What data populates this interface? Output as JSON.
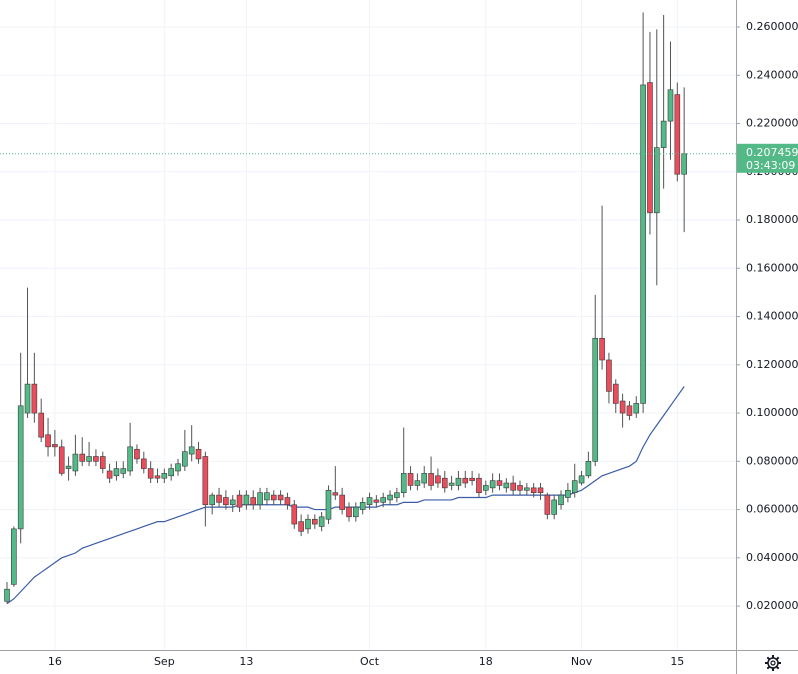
{
  "chart_data": {
    "type": "candlestick",
    "categories": [
      null,
      null,
      null,
      null,
      null,
      null,
      null,
      "16",
      null,
      null,
      null,
      null,
      null,
      null,
      null,
      null,
      null,
      null,
      null,
      null,
      null,
      null,
      null,
      "Sep",
      null,
      null,
      null,
      null,
      null,
      null,
      null,
      null,
      null,
      null,
      null,
      "13",
      null,
      null,
      null,
      null,
      null,
      null,
      null,
      null,
      null,
      null,
      null,
      null,
      null,
      null,
      null,
      null,
      null,
      "Oct",
      null,
      null,
      null,
      null,
      null,
      null,
      null,
      null,
      null,
      null,
      null,
      null,
      null,
      null,
      null,
      null,
      "18",
      null,
      null,
      null,
      null,
      null,
      null,
      null,
      null,
      null,
      null,
      null,
      null,
      null,
      "Nov",
      null,
      null,
      null,
      null,
      null,
      null,
      null,
      null,
      null,
      null,
      null,
      null,
      null,
      "15",
      null
    ],
    "open": [
      0.022,
      0.029,
      0.052,
      0.1,
      0.112,
      0.1,
      0.091,
      0.087,
      0.086,
      0.077,
      0.076,
      0.083,
      0.08,
      0.082,
      0.082,
      0.076,
      0.074,
      0.075,
      0.076,
      0.085,
      0.081,
      0.077,
      0.074,
      0.073,
      0.074,
      0.076,
      0.078,
      0.083,
      0.085,
      0.082,
      0.062,
      0.066,
      0.065,
      0.062,
      0.066,
      0.062,
      0.065,
      0.062,
      0.064,
      0.066,
      0.066,
      0.065,
      0.062,
      0.055,
      0.052,
      0.056,
      0.053,
      0.056,
      0.067,
      0.066,
      0.061,
      0.057,
      0.06,
      0.062,
      0.064,
      0.063,
      0.064,
      0.065,
      0.067,
      0.075,
      0.07,
      0.071,
      0.075,
      0.074,
      0.073,
      0.07,
      0.07,
      0.073,
      0.073,
      0.073,
      0.068,
      0.069,
      0.072,
      0.069,
      0.071,
      0.07,
      0.068,
      0.069,
      0.069,
      0.066,
      0.058,
      0.062,
      0.065,
      0.067,
      0.071,
      0.074,
      0.08,
      0.131,
      0.122,
      0.112,
      0.105,
      0.103,
      0.1,
      0.104,
      0.237,
      0.183,
      0.21,
      0.221,
      0.232,
      0.199
    ],
    "high": [
      0.03,
      0.053,
      0.125,
      0.152,
      0.125,
      0.106,
      0.098,
      0.093,
      0.089,
      0.082,
      0.091,
      0.09,
      0.088,
      0.085,
      0.084,
      0.079,
      0.08,
      0.08,
      0.096,
      0.087,
      0.084,
      0.08,
      0.077,
      0.077,
      0.079,
      0.081,
      0.093,
      0.095,
      0.088,
      0.084,
      0.067,
      0.069,
      0.068,
      0.066,
      0.068,
      0.068,
      0.068,
      0.069,
      0.069,
      0.068,
      0.068,
      0.067,
      0.064,
      0.058,
      0.058,
      0.058,
      0.059,
      0.07,
      0.078,
      0.069,
      0.063,
      0.063,
      0.065,
      0.067,
      0.066,
      0.067,
      0.068,
      0.069,
      0.094,
      0.078,
      0.075,
      0.078,
      0.082,
      0.077,
      0.076,
      0.074,
      0.076,
      0.076,
      0.076,
      0.075,
      0.072,
      0.075,
      0.075,
      0.073,
      0.074,
      0.072,
      0.071,
      0.071,
      0.071,
      0.067,
      0.066,
      0.068,
      0.071,
      0.079,
      0.076,
      0.084,
      0.149,
      0.186,
      0.125,
      0.114,
      0.108,
      0.105,
      0.107,
      0.266,
      0.258,
      0.259,
      0.265,
      0.254,
      0.237,
      0.235
    ],
    "low": [
      0.021,
      0.028,
      0.046,
      0.098,
      0.096,
      0.088,
      0.082,
      0.082,
      0.074,
      0.072,
      0.074,
      0.078,
      0.078,
      0.078,
      0.075,
      0.071,
      0.072,
      0.073,
      0.074,
      0.079,
      0.075,
      0.071,
      0.071,
      0.071,
      0.072,
      0.074,
      0.076,
      0.08,
      0.079,
      0.053,
      0.058,
      0.061,
      0.06,
      0.059,
      0.059,
      0.06,
      0.06,
      0.06,
      0.062,
      0.062,
      0.062,
      0.06,
      0.052,
      0.049,
      0.05,
      0.052,
      0.051,
      0.054,
      0.064,
      0.058,
      0.055,
      0.055,
      0.058,
      0.06,
      0.061,
      0.061,
      0.062,
      0.063,
      0.065,
      0.068,
      0.068,
      0.069,
      0.068,
      0.069,
      0.067,
      0.068,
      0.068,
      0.069,
      0.07,
      0.065,
      0.066,
      0.067,
      0.068,
      0.067,
      0.066,
      0.066,
      0.066,
      0.065,
      0.064,
      0.056,
      0.056,
      0.06,
      0.063,
      0.065,
      0.07,
      0.073,
      0.078,
      0.118,
      0.104,
      0.1,
      0.094,
      0.097,
      0.098,
      0.1,
      0.174,
      0.153,
      0.193,
      0.205,
      0.196,
      0.175
    ],
    "close": [
      0.027,
      0.052,
      0.103,
      0.112,
      0.1,
      0.09,
      0.086,
      0.086,
      0.075,
      0.078,
      0.083,
      0.08,
      0.082,
      0.08,
      0.077,
      0.073,
      0.077,
      0.077,
      0.086,
      0.081,
      0.077,
      0.073,
      0.073,
      0.075,
      0.077,
      0.079,
      0.084,
      0.086,
      0.081,
      0.062,
      0.066,
      0.063,
      0.062,
      0.064,
      0.061,
      0.066,
      0.062,
      0.067,
      0.067,
      0.064,
      0.064,
      0.062,
      0.054,
      0.051,
      0.056,
      0.054,
      0.057,
      0.068,
      0.066,
      0.06,
      0.057,
      0.061,
      0.063,
      0.065,
      0.063,
      0.065,
      0.066,
      0.067,
      0.075,
      0.07,
      0.072,
      0.075,
      0.07,
      0.071,
      0.069,
      0.071,
      0.073,
      0.071,
      0.072,
      0.067,
      0.07,
      0.072,
      0.07,
      0.071,
      0.068,
      0.068,
      0.069,
      0.067,
      0.067,
      0.058,
      0.064,
      0.066,
      0.068,
      0.072,
      0.074,
      0.08,
      0.131,
      0.122,
      0.109,
      0.104,
      0.1,
      0.099,
      0.104,
      0.236,
      0.183,
      0.21,
      0.221,
      0.234,
      0.199,
      0.207459
    ],
    "up_color": "#53b987",
    "down_color": "#eb4d5c",
    "line": {
      "color": "#3b5ca8",
      "values": [
        0.021,
        0.023,
        0.026,
        0.029,
        0.032,
        0.034,
        0.036,
        0.038,
        0.04,
        0.041,
        0.042,
        0.044,
        0.045,
        0.046,
        0.047,
        0.048,
        0.049,
        0.05,
        0.051,
        0.052,
        0.053,
        0.054,
        0.055,
        0.055,
        0.056,
        0.057,
        0.058,
        0.059,
        0.06,
        0.061,
        0.061,
        0.061,
        0.061,
        0.061,
        0.062,
        0.062,
        0.062,
        0.062,
        0.062,
        0.062,
        0.062,
        0.062,
        0.061,
        0.061,
        0.061,
        0.06,
        0.06,
        0.06,
        0.061,
        0.061,
        0.061,
        0.061,
        0.061,
        0.061,
        0.061,
        0.062,
        0.062,
        0.062,
        0.063,
        0.063,
        0.063,
        0.064,
        0.064,
        0.064,
        0.064,
        0.064,
        0.065,
        0.065,
        0.065,
        0.065,
        0.065,
        0.066,
        0.066,
        0.066,
        0.066,
        0.066,
        0.066,
        0.066,
        0.066,
        0.066,
        0.066,
        0.066,
        0.066,
        0.067,
        0.068,
        0.07,
        0.072,
        0.074,
        0.075,
        0.076,
        0.077,
        0.078,
        0.08,
        0.086,
        0.091,
        0.095,
        0.099,
        0.103,
        0.107,
        0.111
      ]
    },
    "ylim": [
      0.0018,
      0.2712
    ],
    "yticks": [
      {
        "value": 0.02,
        "label": "0.020000"
      },
      {
        "value": 0.04,
        "label": "0.040000"
      },
      {
        "value": 0.06,
        "label": "0.060000"
      },
      {
        "value": 0.08,
        "label": "0.080000"
      },
      {
        "value": 0.1,
        "label": "0.100000"
      },
      {
        "value": 0.12,
        "label": "0.120000"
      },
      {
        "value": 0.14,
        "label": "0.140000"
      },
      {
        "value": 0.16,
        "label": "0.160000"
      },
      {
        "value": 0.18,
        "label": "0.180000"
      },
      {
        "value": 0.2,
        "label": "0.200000"
      },
      {
        "value": 0.22,
        "label": "0.220000"
      },
      {
        "value": 0.24,
        "label": "0.240000"
      },
      {
        "value": 0.26,
        "label": "0.260000"
      }
    ],
    "grid": true,
    "last_price": {
      "value": 0.207459,
      "label": "0.207459"
    },
    "countdown": "03:43:09"
  }
}
